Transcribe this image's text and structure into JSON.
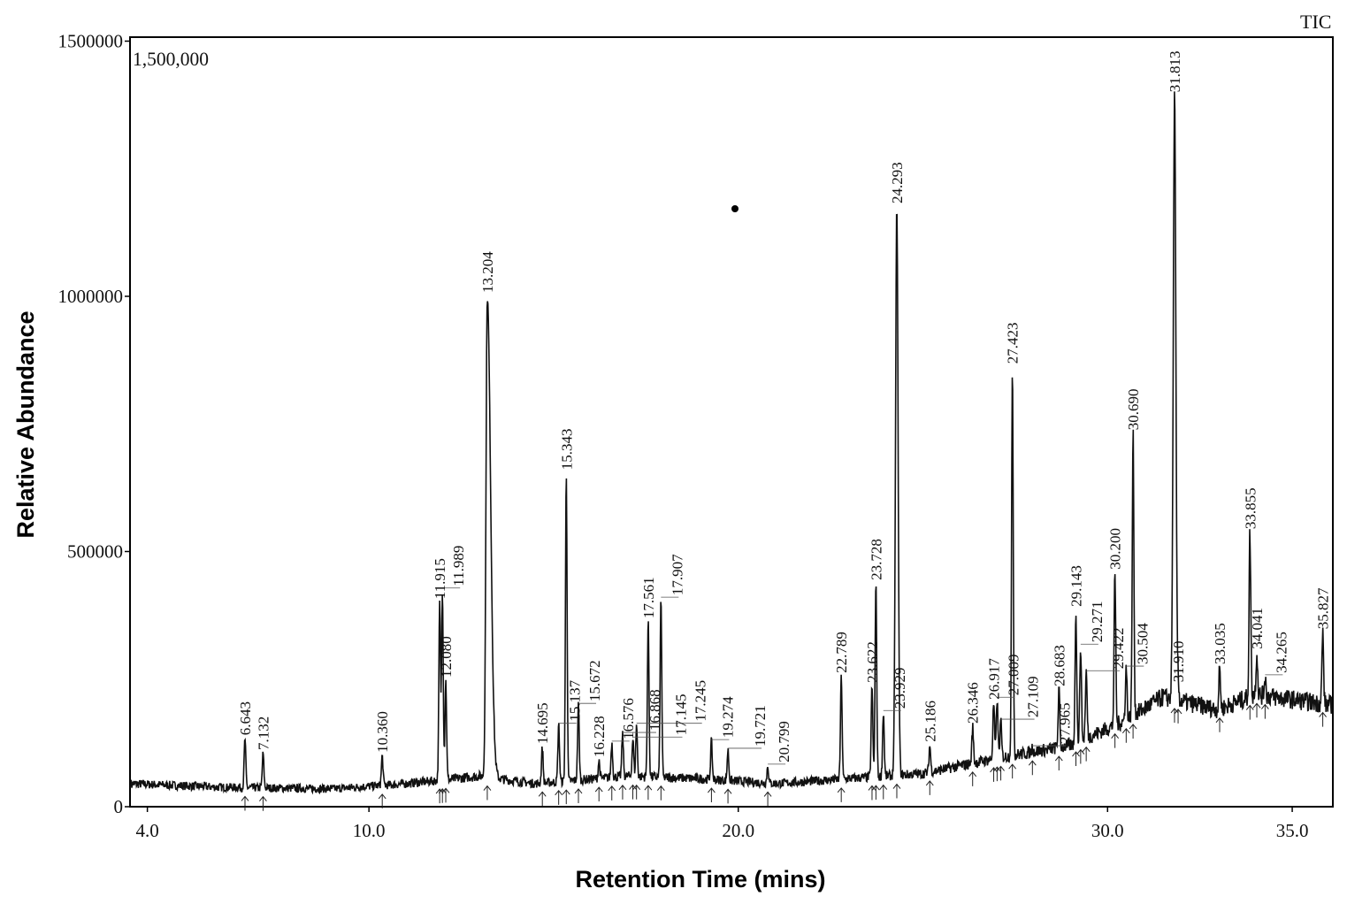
{
  "chart_data": {
    "type": "line",
    "title": "",
    "xlabel": "Retention Time (mins)",
    "ylabel": "Relative Abundance",
    "xlim": [
      3.53,
      36.1
    ],
    "ylim": [
      0,
      1510000
    ],
    "grid": false,
    "x_ticks": [
      4.0,
      10.0,
      20.0,
      30.0,
      35.0
    ],
    "x_tick_labels": [
      "4.0",
      "10.0",
      "20.0",
      "30.0",
      "35.0"
    ],
    "y_ticks": [
      0,
      500000,
      1000000,
      1500000
    ],
    "y_tick_labels": [
      "0",
      "500000",
      "1000000",
      "1500000"
    ],
    "scale_label": "1,500,000",
    "trace_label": "TIC",
    "baseline": [
      [
        3.6,
        45000
      ],
      [
        6,
        38000
      ],
      [
        9,
        35000
      ],
      [
        11,
        45000
      ],
      [
        13,
        60000
      ],
      [
        14.5,
        45000
      ],
      [
        17,
        60000
      ],
      [
        19,
        55000
      ],
      [
        21,
        45000
      ],
      [
        23,
        55000
      ],
      [
        25,
        65000
      ],
      [
        27,
        95000
      ],
      [
        29,
        120000
      ],
      [
        30.5,
        170000
      ],
      [
        31.5,
        215000
      ],
      [
        33,
        190000
      ],
      [
        34,
        220000
      ],
      [
        36,
        200000
      ]
    ],
    "peaks": [
      {
        "rt": "6.643",
        "x": 6.643,
        "y": 133000
      },
      {
        "rt": "7.132",
        "x": 7.132,
        "y": 104000
      },
      {
        "rt": "10.360",
        "x": 10.36,
        "y": 99000
      },
      {
        "rt": "11.915",
        "x": 11.915,
        "y": 400000
      },
      {
        "rt": "11.989",
        "x": 11.989,
        "y": 425000
      },
      {
        "rt": "12.080",
        "x": 12.08,
        "y": 246000
      },
      {
        "rt": "13.204",
        "x": 13.204,
        "y": 1000000
      },
      {
        "rt": "14.695",
        "x": 14.695,
        "y": 116000
      },
      {
        "rt": "15.137",
        "x": 15.137,
        "y": 160000
      },
      {
        "rt": "15.343",
        "x": 15.343,
        "y": 653000
      },
      {
        "rt": "15.672",
        "x": 15.672,
        "y": 199000
      },
      {
        "rt": "16.228",
        "x": 16.228,
        "y": 90000
      },
      {
        "rt": "16.576",
        "x": 16.576,
        "y": 125000
      },
      {
        "rt": "16.868",
        "x": 16.868,
        "y": 142000
      },
      {
        "rt": "17.145",
        "x": 17.145,
        "y": 133000
      },
      {
        "rt": "17.245",
        "x": 17.245,
        "y": 160000
      },
      {
        "rt": "17.561",
        "x": 17.561,
        "y": 362000
      },
      {
        "rt": "17.907",
        "x": 17.907,
        "y": 407000
      },
      {
        "rt": "19.274",
        "x": 19.274,
        "y": 128000
      },
      {
        "rt": "19.721",
        "x": 19.721,
        "y": 111000
      },
      {
        "rt": "20.799",
        "x": 20.799,
        "y": 80000
      },
      {
        "rt": "22.789",
        "x": 22.789,
        "y": 255000
      },
      {
        "rt": "23.622",
        "x": 23.622,
        "y": 236000
      },
      {
        "rt": "23.728",
        "x": 23.728,
        "y": 437000
      },
      {
        "rt": "23.929",
        "x": 23.929,
        "y": 185000
      },
      {
        "rt": "24.293",
        "x": 24.293,
        "y": 1175000
      },
      {
        "rt": "25.186",
        "x": 25.186,
        "y": 120000
      },
      {
        "rt": "26.346",
        "x": 26.346,
        "y": 156000
      },
      {
        "rt": "26.917",
        "x": 26.917,
        "y": 203000
      },
      {
        "rt": "27.009",
        "x": 27.009,
        "y": 211000
      },
      {
        "rt": "27.109",
        "x": 27.109,
        "y": 168000
      },
      {
        "rt": "27.423",
        "x": 27.423,
        "y": 861000
      },
      {
        "rt": "27.965",
        "x": 27.965,
        "y": 116000
      },
      {
        "rt": "28.683",
        "x": 28.683,
        "y": 229000
      },
      {
        "rt": "29.143",
        "x": 29.143,
        "y": 385000
      },
      {
        "rt": "29.271",
        "x": 29.271,
        "y": 315000
      },
      {
        "rt": "29.422",
        "x": 29.422,
        "y": 263000
      },
      {
        "rt": "30.200",
        "x": 30.2,
        "y": 458000
      },
      {
        "rt": "30.504",
        "x": 30.504,
        "y": 272000
      },
      {
        "rt": "30.690",
        "x": 30.69,
        "y": 731000
      },
      {
        "rt": "31.813",
        "x": 31.813,
        "y": 1393000
      },
      {
        "rt": "31.910",
        "x": 31.91,
        "y": 237000
      },
      {
        "rt": "33.035",
        "x": 33.035,
        "y": 272000
      },
      {
        "rt": "33.855",
        "x": 33.855,
        "y": 537000
      },
      {
        "rt": "34.041",
        "x": 34.041,
        "y": 302000
      },
      {
        "rt": "34.265",
        "x": 34.265,
        "y": 255000
      },
      {
        "rt": "35.827",
        "x": 35.827,
        "y": 341000
      }
    ]
  }
}
